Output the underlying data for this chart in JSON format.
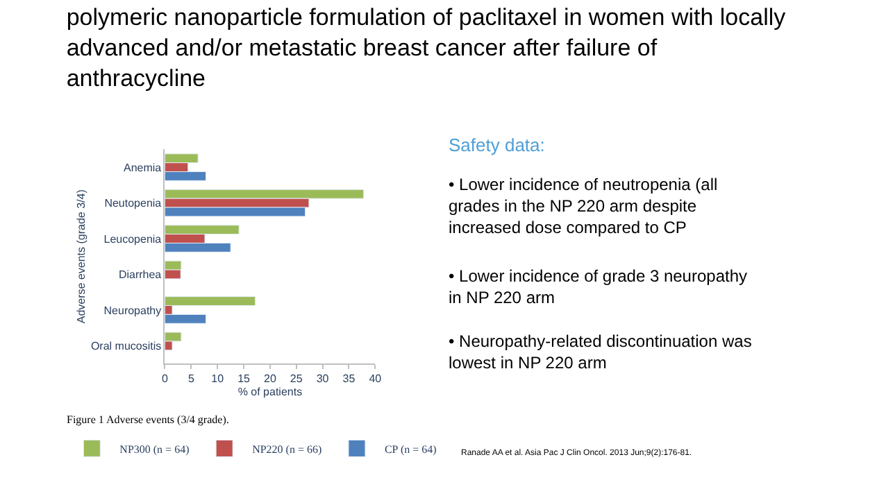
{
  "chart_data": {
    "type": "bar",
    "orientation": "horizontal",
    "title": "polymeric nanoparticle formulation of paclitaxel in women with locally advanced and/or metastatic breast cancer after failure of anthracycline",
    "xlabel": "% of patients",
    "ylabel": "Adverse events (grade 3/4)",
    "categories": [
      "Anemia",
      "Neutopenia",
      "Leucopenia",
      "Diarrhea",
      "Neuropathy",
      "Oral mucositis"
    ],
    "series": [
      {
        "name": "NP300 (n = 64)",
        "color": "#9bbb59",
        "values": [
          6.3,
          37.8,
          14.1,
          3.1,
          17.2,
          3.1
        ]
      },
      {
        "name": "NP220 (n = 66)",
        "color": "#c0504d",
        "values": [
          4.4,
          27.4,
          7.6,
          3.0,
          1.4,
          1.4
        ]
      },
      {
        "name": "CP (n = 64)",
        "color": "#4f81bd",
        "values": [
          7.8,
          26.7,
          12.5,
          null,
          7.8,
          null
        ]
      }
    ],
    "xlim": [
      0,
      40
    ],
    "xticks": [
      0,
      5,
      10,
      15,
      20,
      25,
      30,
      35,
      40
    ],
    "legend": "bottom",
    "annotations": [
      "Safety data:",
      "• Lower incidence of neutropenia (all grades in the NP 220 arm despite increased dose compared to CP",
      "• Lower incidence of grade 3 neuropathy in NP 220 arm",
      "• Neuropathy-related discontinuation was lowest in NP 220 arm",
      "Figure 1 Adverse events (3/4 grade).",
      "Ranade AA et al. Asia Pac J Clin Oncol. 2013 Jun;9(2):176-81."
    ]
  }
}
